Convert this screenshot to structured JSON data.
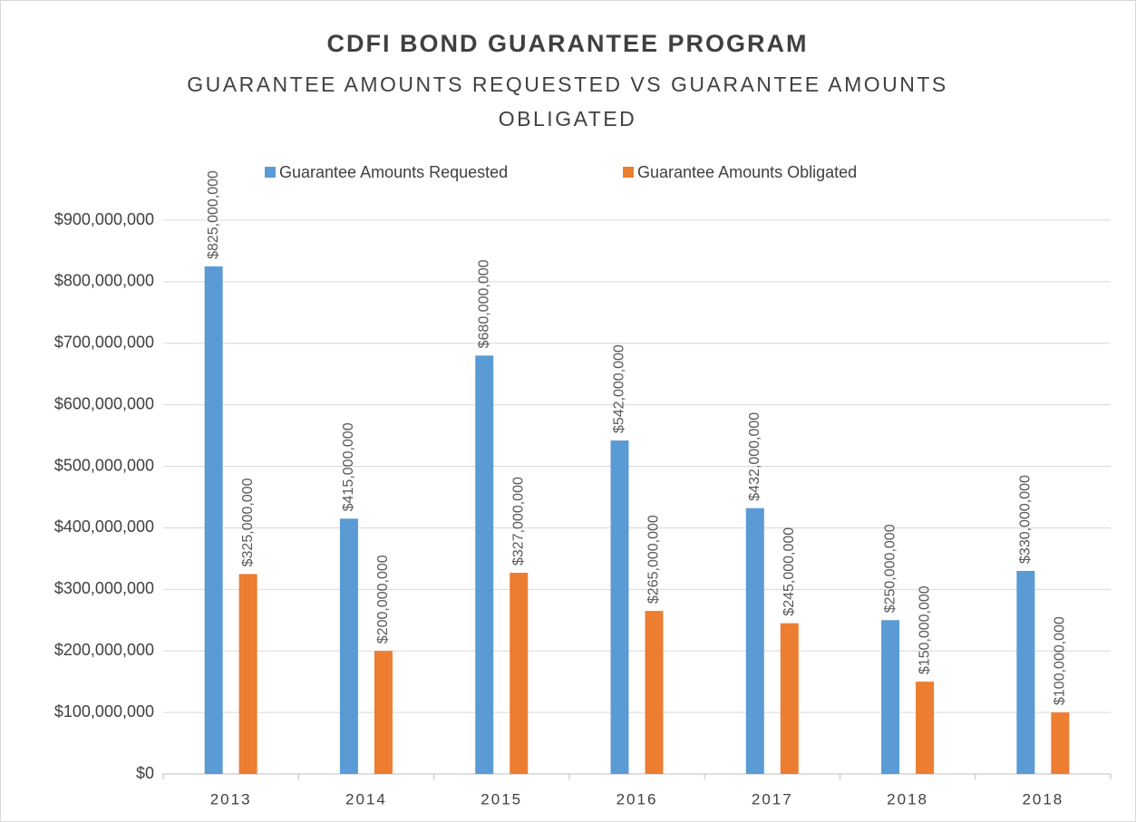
{
  "chart_data": {
    "type": "bar",
    "title": "CDFI BOND GUARANTEE PROGRAM",
    "subtitle": "GUARANTEE AMOUNTS REQUESTED VS GUARANTEE AMOUNTS OBLIGATED",
    "categories": [
      "2013",
      "2014",
      "2015",
      "2016",
      "2017",
      "2018",
      "2018"
    ],
    "series": [
      {
        "name": "Guarantee Amounts Requested",
        "color": "#5b9bd5",
        "values": [
          825000000,
          415000000,
          680000000,
          542000000,
          432000000,
          250000000,
          330000000
        ],
        "value_labels": [
          "$825,000,000",
          "$415,000,000",
          "$680,000,000",
          "$542,000,000",
          "$432,000,000",
          "$250,000,000",
          "$330,000,000"
        ]
      },
      {
        "name": "Guarantee Amounts Obligated",
        "color": "#ed7d31",
        "values": [
          325000000,
          200000000,
          327000000,
          265000000,
          245000000,
          150000000,
          100000000
        ],
        "value_labels": [
          "$325,000,000",
          "$200,000,000",
          "$327,000,000",
          "$265,000,000",
          "$245,000,000",
          "$150,000,000",
          "$100,000,000"
        ]
      }
    ],
    "ylim": [
      0,
      900000000
    ],
    "yticks": [
      {
        "value": 0,
        "label": "$0"
      },
      {
        "value": 100000000,
        "label": "$100,000,000"
      },
      {
        "value": 200000000,
        "label": "$200,000,000"
      },
      {
        "value": 300000000,
        "label": "$300,000,000"
      },
      {
        "value": 400000000,
        "label": "$400,000,000"
      },
      {
        "value": 500000000,
        "label": "$500,000,000"
      },
      {
        "value": 600000000,
        "label": "$600,000,000"
      },
      {
        "value": 700000000,
        "label": "$700,000,000"
      },
      {
        "value": 800000000,
        "label": "$800,000,000"
      },
      {
        "value": 900000000,
        "label": "$900,000,000"
      }
    ],
    "grid": true,
    "legend": "top"
  }
}
